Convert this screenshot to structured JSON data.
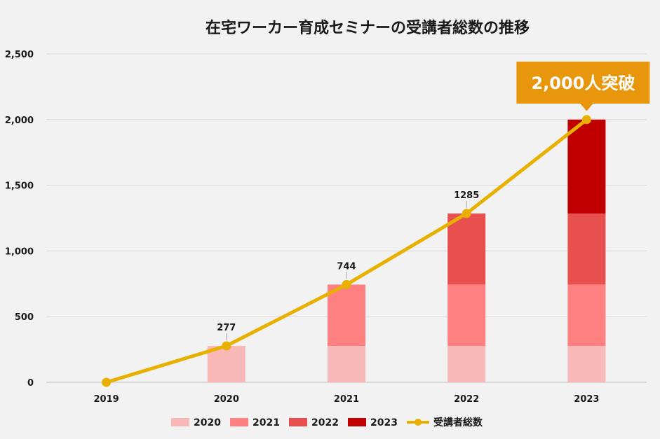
{
  "chart_data": {
    "type": "bar",
    "title": "在宅ワーカー育成セミナーの受講者総数の推移",
    "categories": [
      "2019",
      "2020",
      "2021",
      "2022",
      "2023"
    ],
    "stacked": true,
    "series": [
      {
        "name": "2020",
        "color": "#f8b8b8",
        "values": [
          0,
          277,
          277,
          277,
          277
        ]
      },
      {
        "name": "2021",
        "color": "#ff8080",
        "values": [
          0,
          0,
          467,
          467,
          467
        ]
      },
      {
        "name": "2022",
        "color": "#e84f4f",
        "values": [
          0,
          0,
          0,
          541,
          541
        ]
      },
      {
        "name": "2023",
        "color": "#c00000",
        "values": [
          0,
          0,
          0,
          0,
          715
        ]
      }
    ],
    "line": {
      "name": "受講者総数",
      "color": "#e8b000",
      "values": [
        0,
        277,
        744,
        1285,
        2000
      ],
      "data_labels": [
        "",
        "277",
        "744",
        "1285",
        ""
      ]
    },
    "y_ticks": [
      "0",
      "500",
      "1,000",
      "1,500",
      "2,000",
      "2,500"
    ],
    "ylim": [
      0,
      2500
    ],
    "grid": true,
    "legend_position": "bottom",
    "callout": {
      "text": "2,000人突破",
      "color": "#e8960c"
    }
  }
}
